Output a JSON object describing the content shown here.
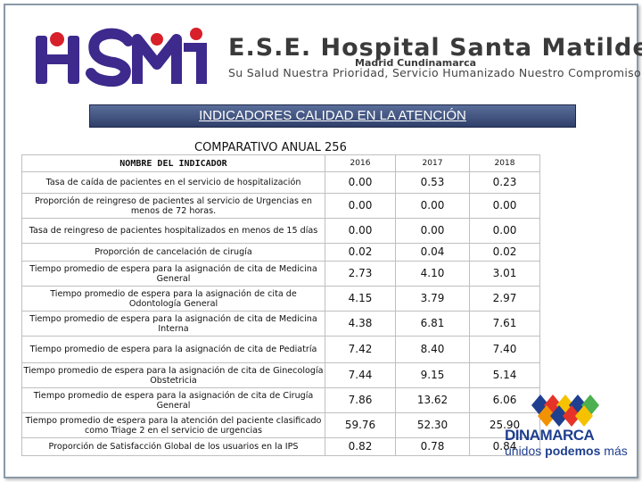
{
  "header": {
    "hospital_name": "E.S.E. Hospital Santa Matilde",
    "location": "Madrid Cundinamarca",
    "motto": "Su Salud Nuestra Prioridad, Servicio Humanizado Nuestro Compromiso",
    "logo_letters": "HSM"
  },
  "banner": {
    "title": "INDICADORES CALIDAD EN LA ATENCIÓN"
  },
  "subtitle": "COMPARATIVO ANUAL 256",
  "table": {
    "name_header": "NOMBRE DEL INDICADOR",
    "years": [
      "2016",
      "2017",
      "2018"
    ],
    "rows": [
      {
        "name": "Tasa de caída de pacientes en el servicio de hospitalización",
        "values": [
          "0.00",
          "0.53",
          "0.23"
        ]
      },
      {
        "name": "Proporción de reingreso de pacientes al servicio de Urgencias en menos de 72 horas.",
        "values": [
          "0.00",
          "0.00",
          "0.00"
        ]
      },
      {
        "name": "Tasa de reingreso de pacientes hospitalizados en menos de 15 días",
        "values": [
          "0.00",
          "0.00",
          "0.00"
        ]
      },
      {
        "name": "Proporción de cancelación de cirugía",
        "values": [
          "0.02",
          "0.04",
          "0.02"
        ]
      },
      {
        "name": "Tiempo promedio de espera para la asignación de cita de Medicina General",
        "values": [
          "2.73",
          "4.10",
          "3.01"
        ]
      },
      {
        "name": "Tiempo promedio de espera para la asignación de cita de Odontología General",
        "values": [
          "4.15",
          "3.79",
          "2.97"
        ]
      },
      {
        "name": "Tiempo promedio de espera para la asignación de cita de Medicina Interna",
        "values": [
          "4.38",
          "6.81",
          "7.61"
        ]
      },
      {
        "name": "Tiempo promedio de espera para la asignación de cita de Pediatría",
        "values": [
          "7.42",
          "8.40",
          "7.40"
        ]
      },
      {
        "name": "Tiempo promedio de espera para la asignación de cita de Ginecología Obstetricia",
        "values": [
          "7.44",
          "9.15",
          "5.14"
        ]
      },
      {
        "name": "Tiempo promedio de espera para la asignación de cita de Cirugía General",
        "values": [
          "7.86",
          "13.62",
          "6.06"
        ]
      },
      {
        "name": "Tiempo promedio de espera para la atención del paciente clasificado como Triage 2 en el servicio de urgencias",
        "values": [
          "59.76",
          "52.30",
          "25.90"
        ]
      },
      {
        "name": "Proporción de Satisfacción Global de los usuarios en la IPS",
        "values": [
          "0.82",
          "0.78",
          "0.84"
        ]
      }
    ]
  },
  "footer_logo": {
    "name": "DINAMARCA",
    "motto_prefix": "unidos ",
    "motto_bold": "podemos",
    "motto_suffix": " más"
  },
  "colors": {
    "banner": "#3b4b78",
    "hsm_purple": "#3d2a8c",
    "hsm_red": "#d8202a",
    "cund_blue": "#1f3f8f"
  }
}
